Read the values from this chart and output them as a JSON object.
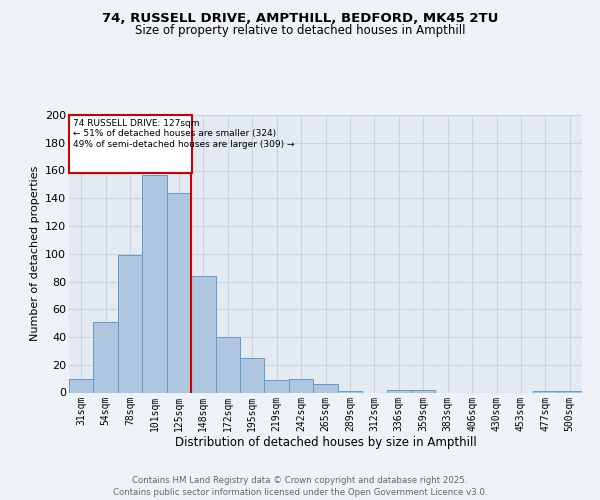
{
  "title_line1": "74, RUSSELL DRIVE, AMPTHILL, BEDFORD, MK45 2TU",
  "title_line2": "Size of property relative to detached houses in Ampthill",
  "xlabel": "Distribution of detached houses by size in Ampthill",
  "ylabel": "Number of detached properties",
  "footer_line1": "Contains HM Land Registry data © Crown copyright and database right 2025.",
  "footer_line2": "Contains public sector information licensed under the Open Government Licence v3.0.",
  "categories": [
    "31sqm",
    "54sqm",
    "78sqm",
    "101sqm",
    "125sqm",
    "148sqm",
    "172sqm",
    "195sqm",
    "219sqm",
    "242sqm",
    "265sqm",
    "289sqm",
    "312sqm",
    "336sqm",
    "359sqm",
    "383sqm",
    "406sqm",
    "430sqm",
    "453sqm",
    "477sqm",
    "500sqm"
  ],
  "values": [
    10,
    51,
    99,
    157,
    144,
    84,
    40,
    25,
    9,
    10,
    6,
    1,
    0,
    2,
    2,
    0,
    0,
    0,
    0,
    1,
    1
  ],
  "bar_color": "#aec6e0",
  "bar_edge_color": "#6699cc",
  "grid_color": "#c8d4df",
  "annotation_box_color": "#cc0000",
  "annotation_text_line1": "74 RUSSELL DRIVE: 127sqm",
  "annotation_text_line2": "← 51% of detached houses are smaller (324)",
  "annotation_text_line3": "49% of semi-detached houses are larger (309) →",
  "vline_x_index": 4.5,
  "vline_color": "#cc0000",
  "ylim": [
    0,
    200
  ],
  "yticks": [
    0,
    20,
    40,
    60,
    80,
    100,
    120,
    140,
    160,
    180,
    200
  ],
  "bg_color": "#eef2f7",
  "plot_bg_color": "#e4eaf2"
}
